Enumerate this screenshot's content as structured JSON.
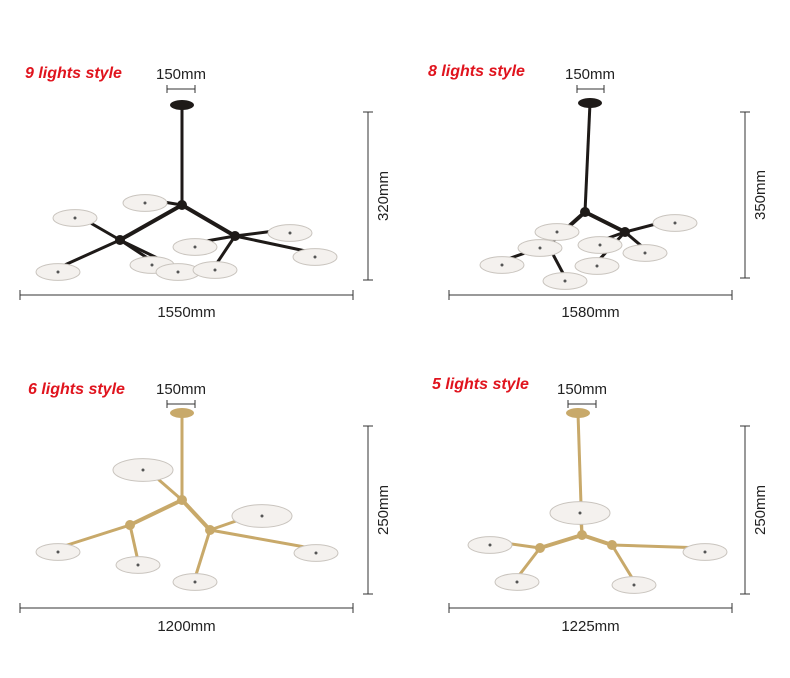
{
  "panels": [
    {
      "title": "9 lights style",
      "canopy": "150mm",
      "height": "320mm",
      "width": "1550mm"
    },
    {
      "title": "8 lights style",
      "canopy": "150mm",
      "height": "350mm",
      "width": "1580mm"
    },
    {
      "title": "6 lights style",
      "canopy": "150mm",
      "height": "250mm",
      "width": "1200mm"
    },
    {
      "title": "5 lights style",
      "canopy": "150mm",
      "height": "250mm",
      "width": "1225mm"
    }
  ]
}
